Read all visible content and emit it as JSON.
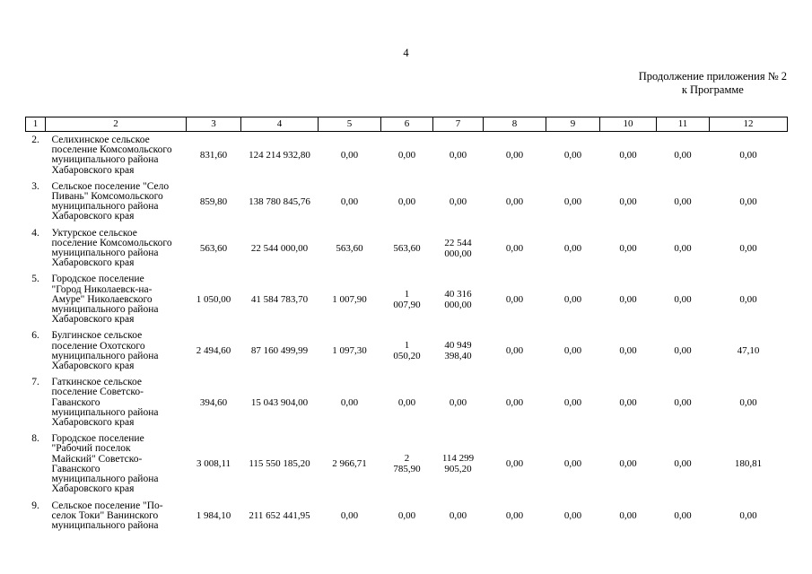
{
  "page": {
    "number": "4",
    "continuation": {
      "line1": "Продолжение приложения № 2",
      "line2": "к Программе"
    }
  },
  "table": {
    "header": [
      "1",
      "2",
      "3",
      "4",
      "5",
      "6",
      "7",
      "8",
      "9",
      "10",
      "11",
      "12"
    ],
    "rows": [
      {
        "num": "2.",
        "name": "Селихинское сельское поселение Комсомольского муниципального района Хабаровского края",
        "values": [
          "831,60",
          "124 214 932,80",
          "0,00",
          "0,00",
          "0,00",
          "0,00",
          "0,00",
          "0,00",
          "0,00",
          "0,00"
        ]
      },
      {
        "num": "3.",
        "name": "Сельское поселение \"Село Пивань\" Комсомольского муниципального района Хабаровского края",
        "values": [
          "859,80",
          "138 780 845,76",
          "0,00",
          "0,00",
          "0,00",
          "0,00",
          "0,00",
          "0,00",
          "0,00",
          "0,00"
        ]
      },
      {
        "num": "4.",
        "name": "Уктурское сельское поселение Комсомольского муниципального района Хабаровского края",
        "values": [
          "563,60",
          "22 544 000,00",
          "563,60",
          "563,60",
          "22 544 000,00",
          "0,00",
          "0,00",
          "0,00",
          "0,00",
          "0,00"
        ]
      },
      {
        "num": "5.",
        "name": "Городское поселение \"Город Николаевск-на-Амуре\" Николаевского муниципального района Хабаровского края",
        "values": [
          "1 050,00",
          "41 584 783,70",
          "1 007,90",
          "1 007,90",
          "40 316 000,00",
          "0,00",
          "0,00",
          "0,00",
          "0,00",
          "0,00"
        ]
      },
      {
        "num": "6.",
        "name": "Булгинское сельское поселение Охотского муниципального района Хабаровского края",
        "values": [
          "2 494,60",
          "87 160 499,99",
          "1 097,30",
          "1 050,20",
          "40 949 398,40",
          "0,00",
          "0,00",
          "0,00",
          "0,00",
          "47,10"
        ]
      },
      {
        "num": "7.",
        "name": "Гаткинское сельское поселение Советско-Гаванского муниципального района Хабаровского края",
        "values": [
          "394,60",
          "15 043 904,00",
          "0,00",
          "0,00",
          "0,00",
          "0,00",
          "0,00",
          "0,00",
          "0,00",
          "0,00"
        ]
      },
      {
        "num": "8.",
        "name": "Городское поселение \"Рабочий поселок Майский\" Советско-Гаванского муниципального района Хабаровского края",
        "values": [
          "3 008,11",
          "115 550 185,20",
          "2 966,71",
          "2 785,90",
          "114 299 905,20",
          "0,00",
          "0,00",
          "0,00",
          "0,00",
          "180,81"
        ]
      },
      {
        "num": "9.",
        "name": "Сельское поселение \"По-селок Токи\" Ванинского муниципального района",
        "values": [
          "1 984,10",
          "211 652 441,95",
          "0,00",
          "0,00",
          "0,00",
          "0,00",
          "0,00",
          "0,00",
          "0,00",
          "0,00"
        ]
      }
    ]
  }
}
